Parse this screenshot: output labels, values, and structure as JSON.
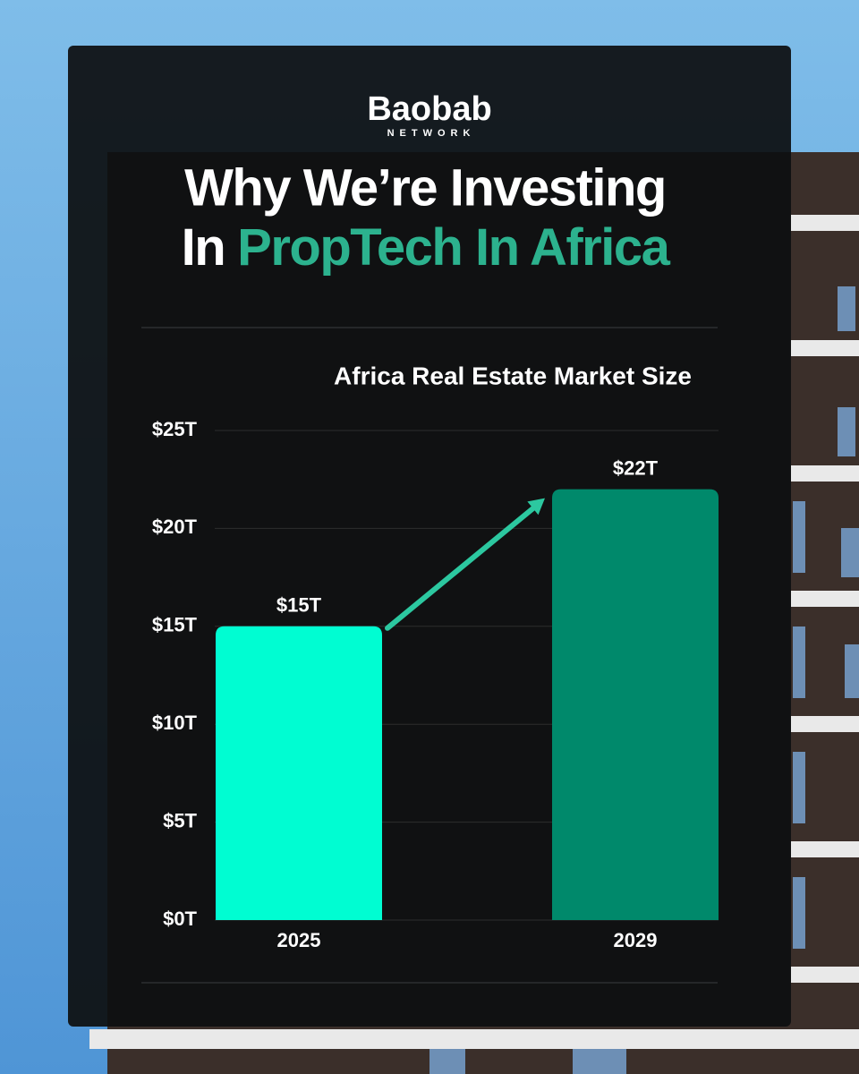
{
  "header": {
    "brand": "Baobab",
    "brand_sub": "NETWORK",
    "title_line1": "Why We’re Investing",
    "title_line2_prefix": "In",
    "title_highlight": "PropTech In Africa"
  },
  "chart_data": {
    "type": "bar",
    "title": "Africa Real Estate Market Size",
    "categories": [
      "2025",
      "2029"
    ],
    "values": [
      15,
      22
    ],
    "value_labels": [
      "$15T",
      "$22T"
    ],
    "colors": [
      "#00fdd2",
      "#00896b"
    ],
    "ylim": [
      0,
      25
    ],
    "yticks": [
      {
        "value": 0,
        "label": "$0T"
      },
      {
        "value": 5,
        "label": "$5T"
      },
      {
        "value": 10,
        "label": "$10T"
      },
      {
        "value": 15,
        "label": "$15T"
      },
      {
        "value": 20,
        "label": "$20T"
      },
      {
        "value": 25,
        "label": "$25T"
      }
    ],
    "grid": true
  }
}
